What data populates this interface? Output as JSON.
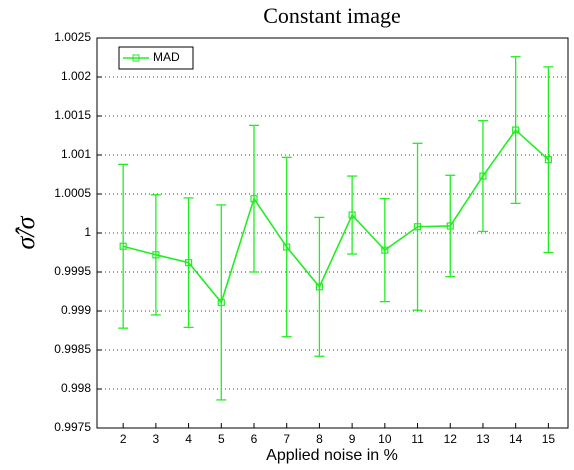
{
  "chart_data": {
    "type": "errorbar_line",
    "title": "Constant image",
    "xlabel": "Applied noise in %",
    "ylabel": "σ̂/σ",
    "x": [
      2,
      3,
      4,
      5,
      6,
      7,
      8,
      9,
      10,
      11,
      12,
      13,
      14,
      15
    ],
    "series": [
      {
        "name": "MAD",
        "color": "#22ee22",
        "values": [
          0.99983,
          0.99972,
          0.99962,
          0.99911,
          1.00044,
          0.99982,
          0.99931,
          1.00023,
          0.99978,
          1.00008,
          1.00009,
          1.00073,
          1.00132,
          1.00094
        ],
        "errors": [
          0.00105,
          0.00077,
          0.00083,
          0.00125,
          0.00094,
          0.00115,
          0.00089,
          0.0005,
          0.00066,
          0.00107,
          0.00065,
          0.00071,
          0.00094,
          0.00119
        ]
      }
    ],
    "xlim": [
      1.2,
      15.6
    ],
    "xticks": [
      2,
      3,
      4,
      5,
      6,
      7,
      8,
      9,
      10,
      11,
      12,
      13,
      14,
      15
    ],
    "ylim": [
      0.9975,
      1.0025
    ],
    "yticks": [
      0.9975,
      0.998,
      0.9985,
      0.999,
      0.9995,
      1,
      1.0005,
      1.001,
      1.0015,
      1.002,
      1.0025
    ],
    "grid": true,
    "legend": "upper left"
  }
}
